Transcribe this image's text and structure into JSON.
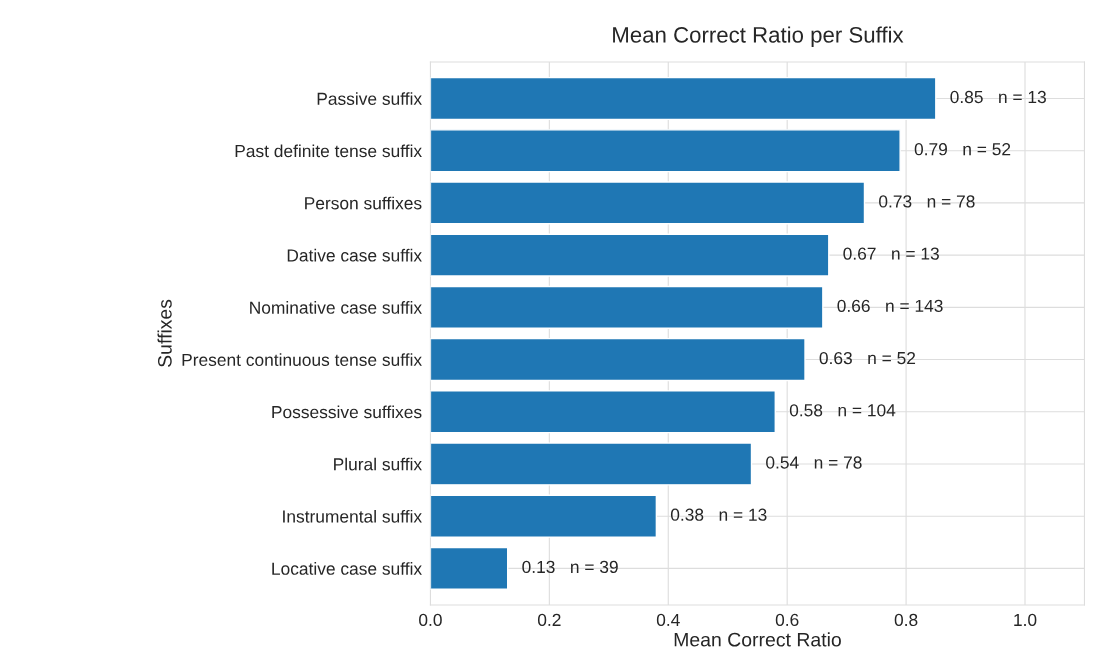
{
  "chart_data": {
    "type": "bar",
    "orientation": "horizontal",
    "title": "Mean Correct Ratio per Suffix",
    "xlabel": "Mean Correct Ratio",
    "ylabel": "Suffixes",
    "categories": [
      "Passive suffix",
      "Past definite tense suffix",
      "Person suffixes",
      "Dative case suffix",
      "Nominative case suffix",
      "Present continuous tense suffix",
      "Possessive suffixes",
      "Plural suffix",
      "Instrumental suffix",
      "Locative case suffix"
    ],
    "values": [
      0.85,
      0.79,
      0.73,
      0.67,
      0.66,
      0.63,
      0.58,
      0.54,
      0.38,
      0.13
    ],
    "value_labels": [
      "0.85   n = 13",
      "0.79   n = 52",
      "0.73   n = 78",
      "0.67   n = 13",
      "0.66   n = 143",
      "0.63   n = 52",
      "0.58   n = 104",
      "0.54   n = 78",
      "0.38   n = 13",
      "0.13   n = 39"
    ],
    "color": "#1f77b4",
    "xlim": [
      0,
      1.1
    ],
    "xticks": [
      {
        "value": 0,
        "label": "0.0"
      },
      {
        "value": 0.2,
        "label": "0.2"
      },
      {
        "value": 0.4,
        "label": "0.4"
      },
      {
        "value": 0.6,
        "label": "0.6"
      },
      {
        "value": 0.8,
        "label": "0.8"
      },
      {
        "value": 1,
        "label": "1.0"
      }
    ],
    "grid": true
  }
}
